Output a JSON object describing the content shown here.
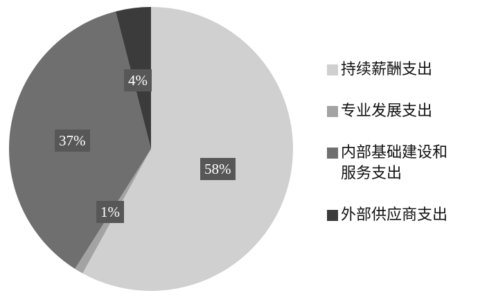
{
  "chart_data": {
    "type": "pie",
    "start_angle": "top",
    "direction": "clockwise",
    "slices": [
      {
        "name": "持续薪酬支出",
        "value": 58,
        "label": "58%",
        "color": "#d0d0d0"
      },
      {
        "name": "专业发展支出",
        "value": 1,
        "label": "1%",
        "color": "#a3a3a3"
      },
      {
        "name": "内部基础建设和服务支出",
        "value": 37,
        "label": "37%",
        "color": "#6f6f6f"
      },
      {
        "name": "外部供应商支出",
        "value": 4,
        "label": "4%",
        "color": "#3b3b3b"
      }
    ],
    "legend": {
      "placement": "right",
      "entries": [
        [
          "持续薪酬支出"
        ],
        [
          "专业发展支出"
        ],
        [
          "内部基础建设和",
          "服务支出"
        ],
        [
          "外部供应商支出"
        ]
      ]
    }
  }
}
